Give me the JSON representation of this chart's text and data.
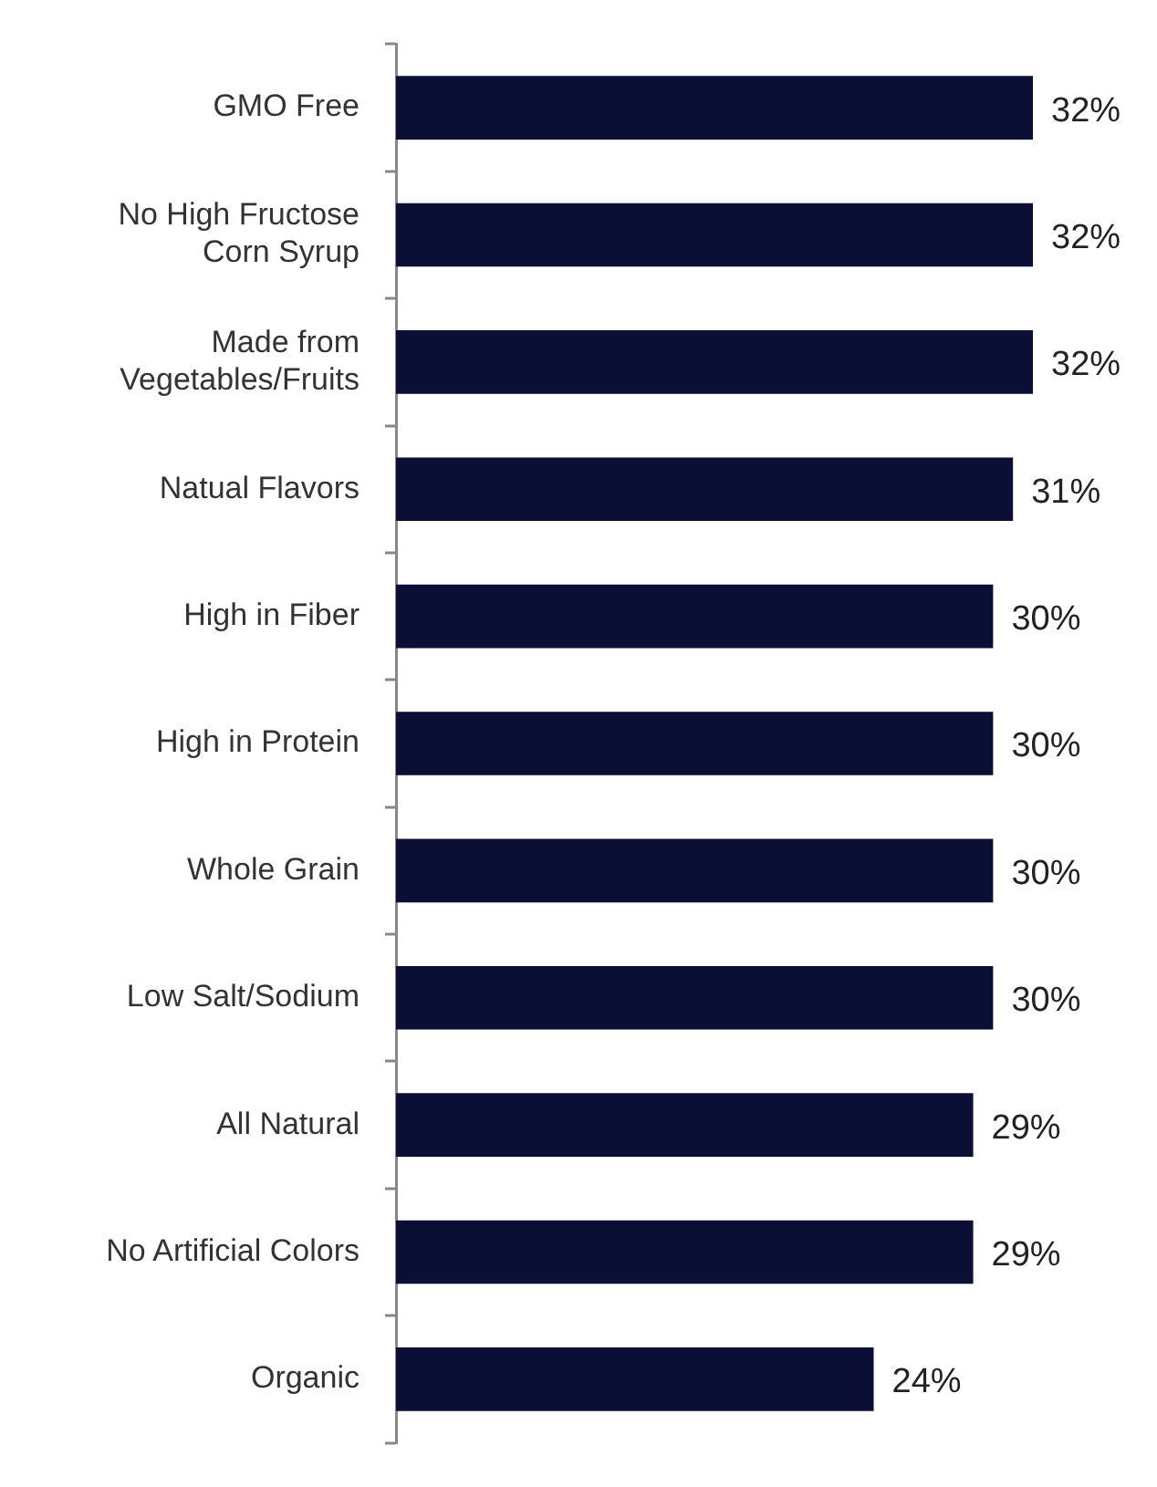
{
  "chart_data": {
    "type": "bar",
    "orientation": "horizontal",
    "categories": [
      "GMO Free",
      "No High Fructose\nCorn Syrup",
      "Made from\nVegetables/Fruits",
      "Natual Flavors",
      "High in Fiber",
      "High in Protein",
      "Whole Grain",
      "Low Salt/Sodium",
      "All Natural",
      "No Artificial Colors",
      "Organic"
    ],
    "values": [
      32,
      32,
      32,
      31,
      30,
      30,
      30,
      30,
      29,
      29,
      24
    ],
    "value_labels": [
      "32%",
      "32%",
      "32%",
      "31%",
      "30%",
      "30%",
      "30%",
      "30%",
      "29%",
      "29%",
      "24%"
    ],
    "color": "#0b0f35",
    "tick_labels": "y",
    "legend": false
  }
}
